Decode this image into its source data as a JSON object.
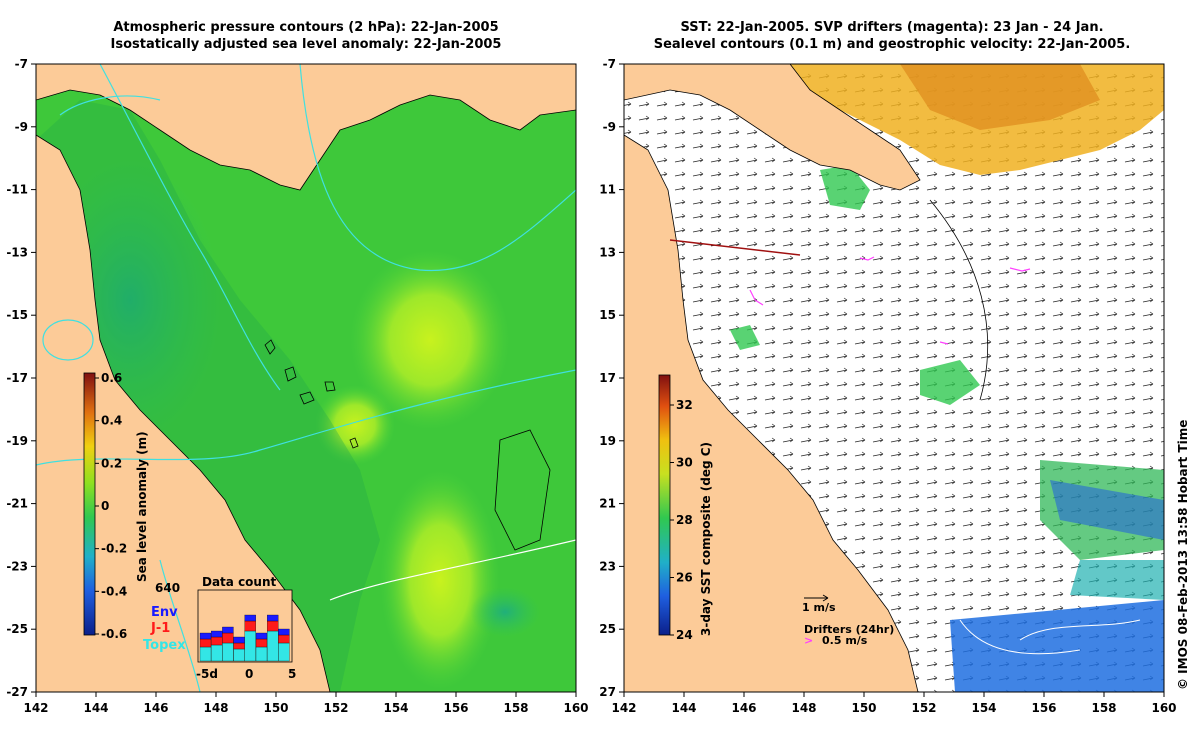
{
  "left_panel": {
    "title_line1": "Atmospheric pressure contours (2 hPa): 22-Jan-2005",
    "title_line2": "Isostatically adjusted sea level anomaly: 22-Jan-2005",
    "colorbar": {
      "label": "Sea level anomaly (m)",
      "ticks": [
        "0.6",
        "0.4",
        "0.2",
        "0",
        "-0.2",
        "-0.4",
        "-0.6"
      ],
      "range": [
        -0.6,
        0.6
      ]
    },
    "data_count": {
      "title": "Data count",
      "max_label": "640",
      "legend": [
        {
          "label": "Env",
          "color": "#1a1aff"
        },
        {
          "label": "J-1",
          "color": "#ff1a1a"
        },
        {
          "label": "Topex",
          "color": "#33e6e6"
        }
      ],
      "x_ticks": [
        "-5d",
        "0",
        "5"
      ]
    }
  },
  "right_panel": {
    "title_line1": "SST: 22-Jan-2005. SVP drifters (magenta): 23 Jan - 24 Jan.",
    "title_line2": "Sealevel contours (0.1 m) and geostrophic velocity: 22-Jan-2005.",
    "colorbar": {
      "label": "3-day SST composite (deg C)",
      "ticks": [
        "32",
        "30",
        "28",
        "26",
        "24"
      ],
      "range": [
        24,
        33
      ]
    },
    "velocity_scale_label": "1 m/s",
    "drifters_label": "Drifters (24hr)",
    "drifters_scale_label": "0.5 m/s"
  },
  "axes": {
    "x_ticks": [
      "142",
      "144",
      "146",
      "148",
      "150",
      "152",
      "154",
      "156",
      "158",
      "160"
    ],
    "y_ticks": [
      "-7",
      "-9",
      "-11",
      "-13",
      "-15",
      "-17",
      "-19",
      "-21",
      "-23",
      "-25",
      "-27"
    ]
  },
  "credit": "© IMOS 08-Feb-2013 13:58 Hobart Time",
  "colors": {
    "land": "#fccb98",
    "ocean_green": "#33c833",
    "contour_cyan": "#40e0e0"
  }
}
